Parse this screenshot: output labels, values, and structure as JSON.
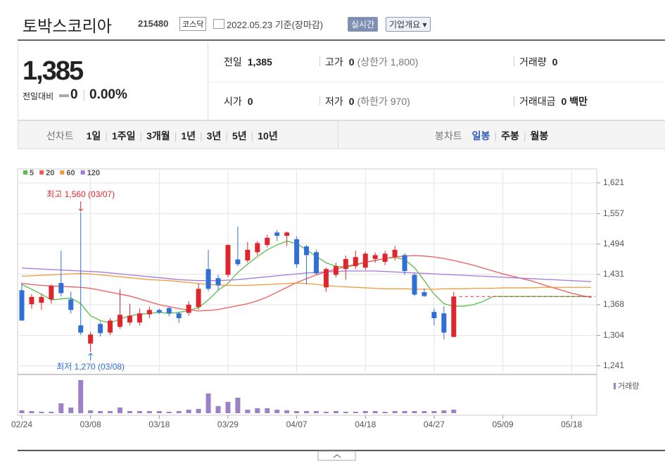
{
  "header": {
    "name": "토박스코리아",
    "code": "215480",
    "market": "코스닥",
    "date": "2022.05.23 기준(장마감)",
    "realtime": "실시간",
    "company_info": "기업개요"
  },
  "quote": {
    "price": "1,385",
    "change_label": "전일대비",
    "change": "0",
    "change_rate": "0.00%",
    "items": [
      {
        "label": "전일",
        "value": "1,385"
      },
      {
        "label": "고가",
        "value": "0",
        "note": "(상한가 1,800)"
      },
      {
        "label": "거래량",
        "value": "0"
      },
      {
        "label": "시가",
        "value": "0"
      },
      {
        "label": "저가",
        "value": "0",
        "note": "(하한가 970)"
      },
      {
        "label": "거래대금",
        "value": "0 백만"
      }
    ]
  },
  "toolbar": {
    "line_chart": "선차트",
    "line_periods": [
      "1일",
      "1주일",
      "3개월",
      "1년",
      "3년",
      "5년",
      "10년"
    ],
    "candle_chart": "봉차트",
    "candle_periods": [
      "일봉",
      "주봉",
      "월봉"
    ],
    "selected_candle_period": 0
  },
  "chart_data": {
    "type": "candlestick",
    "categories": [
      "02/24",
      null,
      null,
      null,
      null,
      null,
      null,
      "03/08",
      null,
      null,
      null,
      null,
      null,
      null,
      "03/18",
      null,
      null,
      null,
      null,
      null,
      null,
      "03/29",
      null,
      null,
      null,
      null,
      null,
      null,
      "04/07",
      null,
      null,
      null,
      null,
      null,
      null,
      "04/18",
      null,
      null,
      null,
      null,
      null,
      null,
      "04/27",
      null,
      null,
      null,
      null,
      null,
      null,
      "05/09",
      null,
      null,
      null,
      null,
      null,
      null,
      "05/18",
      null,
      null
    ],
    "open": [
      1398,
      1369,
      1372,
      1379,
      1413,
      1379,
      1325,
      1287,
      1328,
      1310,
      1322,
      1331,
      1331,
      1348,
      1357,
      1361,
      1350,
      1351,
      1363,
      1442,
      1423,
      1430,
      1462,
      1460,
      1477,
      1492,
      1518,
      1511,
      1504,
      1489,
      1477,
      1404,
      1430,
      1442,
      1448,
      1445,
      1463,
      1457,
      1467,
      1471,
      1430,
      1394,
      1353,
      1350,
      1301,
      null,
      null,
      null,
      null,
      null,
      null,
      null,
      null,
      null,
      null,
      null,
      null,
      null,
      null
    ],
    "high": [
      1414,
      1390,
      1390,
      1410,
      1480,
      1395,
      1560,
      1312,
      1332,
      1340,
      1400,
      1370,
      1360,
      1364,
      1360,
      1364,
      1353,
      1375,
      1412,
      1482,
      1430,
      1494,
      1530,
      1498,
      1500,
      1513,
      1523,
      1520,
      1510,
      1492,
      1482,
      1445,
      1455,
      1470,
      1480,
      1478,
      1476,
      1480,
      1490,
      1475,
      1433,
      1402,
      1360,
      1365,
      1395,
      null,
      null,
      null,
      null,
      null,
      null,
      null,
      null,
      null,
      null,
      null,
      null,
      null,
      null
    ],
    "low": [
      1335,
      1360,
      1357,
      1370,
      1385,
      1350,
      1305,
      1270,
      1302,
      1305,
      1318,
      1325,
      1325,
      1340,
      1348,
      1344,
      1330,
      1345,
      1358,
      1396,
      1398,
      1425,
      1448,
      1455,
      1470,
      1487,
      1500,
      1490,
      1445,
      1410,
      1430,
      1395,
      1425,
      1420,
      1442,
      1440,
      1455,
      1450,
      1460,
      1430,
      1386,
      1384,
      1325,
      1296,
      1301,
      null,
      null,
      null,
      null,
      null,
      null,
      null,
      null,
      null,
      null,
      null,
      null,
      null,
      null
    ],
    "close": [
      1335,
      1384,
      1384,
      1407,
      1392,
      1357,
      1310,
      1306,
      1309,
      1335,
      1347,
      1345,
      1350,
      1357,
      1352,
      1350,
      1340,
      1368,
      1401,
      1401,
      1408,
      1492,
      1452,
      1482,
      1496,
      1507,
      1511,
      1518,
      1452,
      1471,
      1433,
      1442,
      1448,
      1463,
      1467,
      1474,
      1471,
      1474,
      1482,
      1438,
      1389,
      1386,
      1340,
      1310,
      1385,
      null,
      null,
      null,
      null,
      null,
      null,
      null,
      null,
      null,
      null,
      null,
      null,
      null,
      null
    ],
    "up_color": "#e0262d",
    "down_color": "#2f6fd6",
    "ylim": [
      1226,
      1650
    ],
    "yticks": [
      {
        "value": 1621,
        "label": "1,621"
      },
      {
        "value": 1557,
        "label": "1,557"
      },
      {
        "value": 1494,
        "label": "1,494"
      },
      {
        "value": 1431,
        "label": "1,431"
      },
      {
        "value": 1368,
        "label": "1,368"
      },
      {
        "value": 1304,
        "label": "1,304"
      },
      {
        "value": 1241,
        "label": "1,241"
      }
    ],
    "grid": true,
    "moving_averages": [
      {
        "name": "5",
        "color": "#5bbd4e",
        "values": [
          1410,
          1400,
          1390,
          1378,
          1380,
          1382,
          1370,
          1345,
          1335,
          1330,
          1338,
          1345,
          1348,
          1350,
          1352,
          1350,
          1352,
          1356,
          1362,
          1378,
          1398,
          1412,
          1435,
          1452,
          1468,
          1482,
          1492,
          1500,
          1495,
          1482,
          1468,
          1455,
          1448,
          1446,
          1450,
          1456,
          1460,
          1464,
          1466,
          1462,
          1445,
          1418,
          1390,
          1370,
          1365,
          1365,
          1368,
          1375,
          1385,
          1385,
          1385,
          1385,
          1385,
          1385,
          1385,
          1385,
          1385,
          1385,
          1385
        ]
      },
      {
        "name": "20",
        "color": "#ef5b5b",
        "values": [
          1412,
          1410,
          1408,
          1407,
          1406,
          1405,
          1404,
          1402,
          1398,
          1394,
          1390,
          1386,
          1380,
          1374,
          1368,
          1364,
          1360,
          1357,
          1355,
          1356,
          1358,
          1362,
          1366,
          1370,
          1376,
          1384,
          1394,
          1404,
          1414,
          1422,
          1430,
          1436,
          1442,
          1447,
          1452,
          1456,
          1460,
          1464,
          1467,
          1469,
          1470,
          1469,
          1467,
          1464,
          1460,
          1455,
          1450,
          1444,
          1438,
          1432,
          1427,
          1422,
          1417,
          1410,
          1404,
          1398,
          1392,
          1387,
          1383
        ]
      },
      {
        "name": "60",
        "color": "#f39a3a",
        "values": [
          1427,
          1428,
          1429,
          1430,
          1431,
          1432,
          1433,
          1432,
          1430,
          1428,
          1426,
          1424,
          1422,
          1420,
          1419,
          1418,
          1416,
          1414,
          1412,
          1410,
          1409,
          1408,
          1408,
          1408,
          1409,
          1410,
          1411,
          1412,
          1413,
          1412,
          1410,
          1408,
          1406,
          1405,
          1404,
          1403,
          1402,
          1401,
          1401,
          1401,
          1400,
          1400,
          1400,
          1401,
          1401,
          1401,
          1402,
          1402,
          1402,
          1403,
          1403,
          1403,
          1403,
          1404,
          1404,
          1404,
          1404,
          1404,
          1404
        ]
      },
      {
        "name": "120",
        "color": "#a57ad8",
        "values": [
          1444,
          1443,
          1442,
          1441,
          1440,
          1439,
          1438,
          1437,
          1436,
          1434,
          1432,
          1430,
          1428,
          1426,
          1424,
          1422,
          1420,
          1419,
          1418,
          1418,
          1418,
          1419,
          1420,
          1422,
          1424,
          1426,
          1428,
          1430,
          1432,
          1434,
          1435,
          1436,
          1437,
          1438,
          1438,
          1438,
          1438,
          1437,
          1436,
          1435,
          1434,
          1433,
          1432,
          1431,
          1430,
          1429,
          1428,
          1427,
          1426,
          1425,
          1424,
          1423,
          1422,
          1421,
          1420,
          1419,
          1418,
          1417,
          1416
        ]
      }
    ],
    "volume": {
      "name": "거래량",
      "color": "#9c80c8",
      "ylim": [
        0,
        50
      ],
      "values": [
        4,
        3,
        2,
        2,
        14,
        8,
        47,
        4,
        3,
        3,
        8,
        3,
        3,
        3,
        3,
        2,
        3,
        5,
        6,
        28,
        10,
        16,
        22,
        5,
        7,
        7,
        5,
        4,
        3,
        3,
        3,
        2,
        3,
        2,
        2,
        3,
        3,
        2,
        3,
        3,
        3,
        3,
        3,
        4,
        5,
        null,
        null,
        null,
        null,
        null,
        null,
        null,
        null,
        null,
        null,
        null,
        null,
        null,
        null
      ]
    },
    "annotations": {
      "high": "최고 1,560 (03/07)",
      "low": "최저 1,270 (03/08)"
    }
  }
}
